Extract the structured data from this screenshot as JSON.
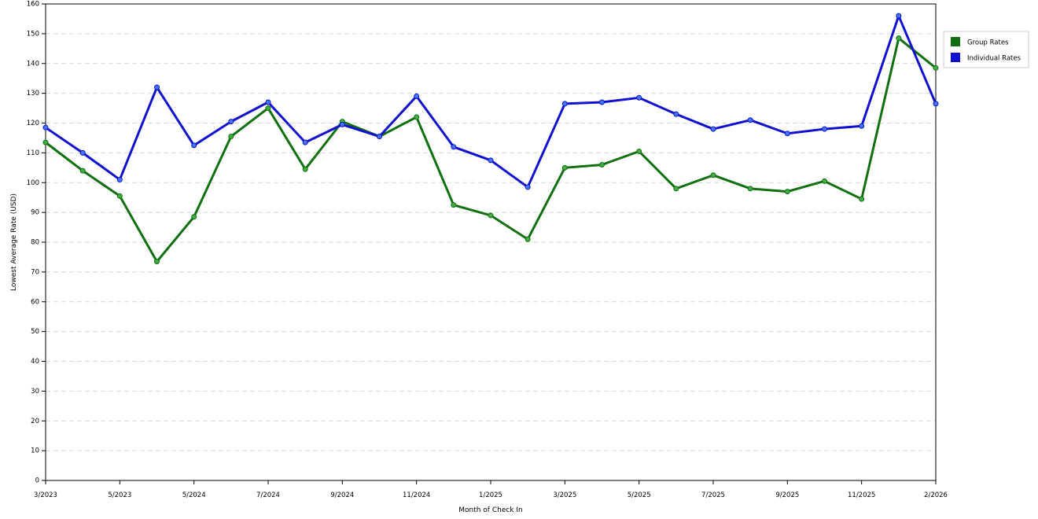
{
  "chart_data": {
    "type": "line",
    "title": "",
    "xlabel": "Month of Check In",
    "ylabel": "Lowest Average Rate (USD)",
    "ylim": [
      0,
      160
    ],
    "y_ticks": [
      0,
      10,
      20,
      30,
      40,
      50,
      60,
      70,
      80,
      90,
      100,
      110,
      120,
      130,
      140,
      150,
      160
    ],
    "grid": "horizontal dashed",
    "legend_position": "top-right",
    "x_tick_labels": [
      "3/2023",
      "5/2023",
      "5/2024",
      "7/2024",
      "9/2024",
      "11/2024",
      "1/2025",
      "3/2025",
      "5/2025",
      "7/2025",
      "9/2025",
      "11/2025",
      "2/2026"
    ],
    "x_tick_indices": [
      0,
      2,
      4,
      6,
      8,
      10,
      12,
      14,
      16,
      18,
      20,
      22,
      24
    ],
    "x_count": 25,
    "series": [
      {
        "name": "Group Rates",
        "color": "#107010",
        "values": [
          113.5,
          104,
          95.5,
          73.5,
          88.5,
          115.5,
          125,
          104.5,
          120.5,
          115.5,
          122,
          92.5,
          89,
          81,
          105,
          106,
          110.5,
          98,
          102.5,
          98,
          97,
          100.5,
          94.5,
          148.5,
          138.5
        ]
      },
      {
        "name": "Individual Rates",
        "color": "#1010d0",
        "values": [
          118.5,
          110,
          101,
          132,
          112.5,
          120.5,
          127,
          113.5,
          119.5,
          115.5,
          129,
          112,
          107.5,
          98.5,
          126.5,
          127,
          128.5,
          123,
          118,
          121,
          116.5,
          118,
          119,
          156,
          126.5
        ]
      }
    ]
  }
}
